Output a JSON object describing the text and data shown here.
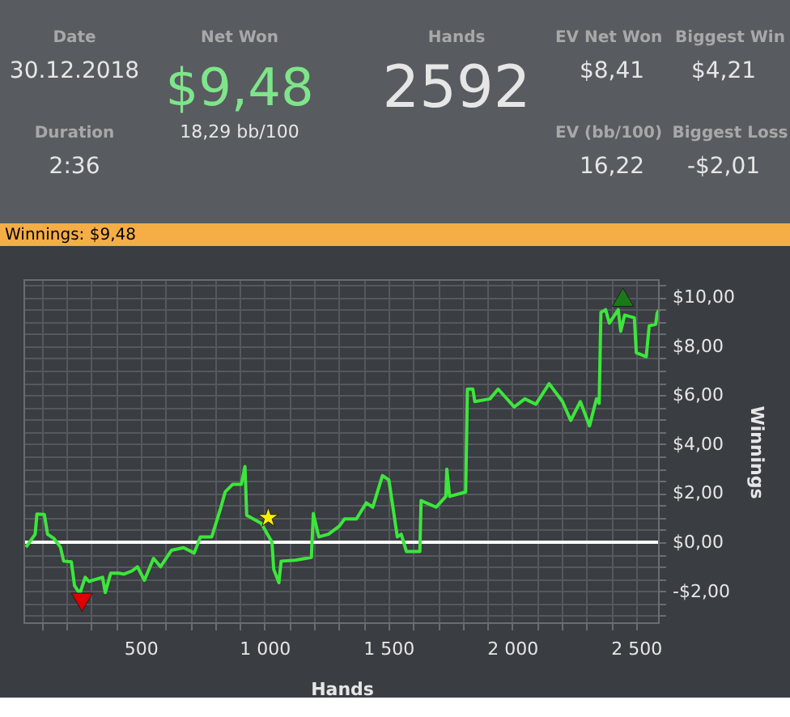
{
  "chart_data": [
    {
      "type": "other",
      "annotations": [
        "Date",
        "30.12.2018",
        "Net Won",
        "$9,48",
        "18,29 bb/100",
        "Hands",
        "2592",
        "EV Net Won",
        "$8,41",
        "Biggest Win",
        "$4,21",
        "Duration",
        "2:36",
        "EV (bb/100)",
        "16,22",
        "Biggest Loss",
        "-$2,01"
      ]
    },
    {
      "type": "line",
      "title": "Winnings: $9,48",
      "xlabel": "Hands",
      "ylabel": "Winnings",
      "xlim": [
        30,
        2592
      ],
      "ylim": [
        -3.3,
        10.7
      ],
      "xticks": [
        {
          "value": 100,
          "label": null
        },
        {
          "value": 200,
          "label": null
        },
        {
          "value": 300,
          "label": null
        },
        {
          "value": 400,
          "label": null
        },
        500,
        {
          "value": 600,
          "label": null
        },
        {
          "value": 700,
          "label": null
        },
        {
          "value": 800,
          "label": null
        },
        {
          "value": 900,
          "label": null
        },
        {
          "value": 1000,
          "label": "1 000"
        },
        {
          "value": 1100,
          "label": null
        },
        {
          "value": 1200,
          "label": null
        },
        {
          "value": 1300,
          "label": null
        },
        {
          "value": 1400,
          "label": null
        },
        {
          "value": 1500,
          "label": "1 500"
        },
        {
          "value": 1600,
          "label": null
        },
        {
          "value": 1700,
          "label": null
        },
        {
          "value": 1800,
          "label": null
        },
        {
          "value": 1900,
          "label": null
        },
        {
          "value": 2000,
          "label": "2 000"
        },
        {
          "value": 2100,
          "label": null
        },
        {
          "value": 2200,
          "label": null
        },
        {
          "value": 2300,
          "label": null
        },
        {
          "value": 2400,
          "label": null
        },
        {
          "value": 2500,
          "label": "2 500"
        }
      ],
      "yticks": [
        {
          "value": -3,
          "label": null
        },
        {
          "value": -2.5,
          "label": null
        },
        {
          "value": -2,
          "label": "-$2,00"
        },
        {
          "value": -1.5,
          "label": null
        },
        {
          "value": -1,
          "label": null
        },
        {
          "value": -0.5,
          "label": null
        },
        {
          "value": 0,
          "label": "$0,00"
        },
        {
          "value": 0.5,
          "label": null
        },
        {
          "value": 1,
          "label": null
        },
        {
          "value": 1.5,
          "label": null
        },
        {
          "value": 2,
          "label": "$2,00"
        },
        {
          "value": 2.5,
          "label": null
        },
        {
          "value": 3,
          "label": null
        },
        {
          "value": 3.5,
          "label": null
        },
        {
          "value": 4,
          "label": "$4,00"
        },
        {
          "value": 4.5,
          "label": null
        },
        {
          "value": 5,
          "label": null
        },
        {
          "value": 5.5,
          "label": null
        },
        {
          "value": 6,
          "label": "$6,00"
        },
        {
          "value": 6.5,
          "label": null
        },
        {
          "value": 7,
          "label": null
        },
        {
          "value": 7.5,
          "label": null
        },
        {
          "value": 8,
          "label": "$8,00"
        },
        {
          "value": 8.5,
          "label": null
        },
        {
          "value": 9,
          "label": null
        },
        {
          "value": 9.5,
          "label": null
        },
        {
          "value": 10,
          "label": "$10,00"
        },
        {
          "value": 10.5,
          "label": null
        }
      ],
      "grid": true,
      "ref_lines": [
        {
          "axis": "y",
          "value": 0,
          "color": "#ffffff"
        }
      ],
      "series": [
        {
          "type": "line",
          "marker": "none",
          "color": "#3ce63c",
          "x": [
            37,
            74,
            81,
            111,
            124,
            150,
            176,
            189,
            220,
            233,
            254,
            276,
            291,
            346,
            357,
            379,
            411,
            433,
            465,
            487,
            515,
            552,
            580,
            624,
            673,
            716,
            741,
            787,
            824,
            841,
            871,
            906,
            921,
            928,
            987,
            1030,
            1037,
            1058,
            1067,
            1124,
            1189,
            1197,
            1219,
            1258,
            1302,
            1323,
            1371,
            1411,
            1437,
            1476,
            1502,
            1536,
            1552,
            1573,
            1627,
            1632,
            1693,
            1732,
            1736,
            1747,
            1812,
            1819,
            1841,
            1849,
            1910,
            1943,
            2008,
            2051,
            2095,
            2149,
            2203,
            2236,
            2275,
            2312,
            2340,
            2351,
            2358,
            2377,
            2392,
            2428,
            2438,
            2454,
            2493,
            2501,
            2541,
            2553,
            2579,
            2585,
            2592
          ],
          "values": [
            -0.2,
            0.33,
            1.15,
            1.13,
            0.33,
            0.15,
            -0.2,
            -0.77,
            -0.8,
            -1.77,
            -2.1,
            -1.43,
            -1.6,
            -1.43,
            -2.05,
            -1.26,
            -1.26,
            -1.3,
            -1.17,
            -1.0,
            -1.55,
            -0.66,
            -1.0,
            -0.33,
            -0.22,
            -0.44,
            0.22,
            0.22,
            1.43,
            2.05,
            2.36,
            2.36,
            3.09,
            1.1,
            0.77,
            0,
            -1.1,
            -1.65,
            -0.77,
            -0.73,
            -0.62,
            1.17,
            0.22,
            0.33,
            0.66,
            0.95,
            0.95,
            1.61,
            1.43,
            2.72,
            2.54,
            0.22,
            0.33,
            -0.38,
            -0.38,
            1.7,
            1.43,
            1.87,
            2.98,
            1.87,
            2.05,
            6.25,
            6.25,
            5.74,
            5.85,
            6.25,
            5.52,
            5.85,
            5.63,
            6.47,
            5.74,
            4.97,
            5.74,
            4.75,
            5.85,
            5.67,
            9.38,
            9.49,
            8.94,
            9.49,
            8.61,
            9.27,
            9.16,
            7.73,
            7.57,
            8.83,
            8.89,
            9.34,
            9.48
          ]
        },
        {
          "type": "scatter",
          "marker": "triangle",
          "color": "#e00000",
          "x": [
            263
          ],
          "values": [
            -2.45
          ]
        },
        {
          "type": "scatter",
          "marker": "star",
          "color": "#ffee00",
          "x": [
            1015
          ],
          "values": [
            1.0
          ]
        },
        {
          "type": "scatter",
          "marker": "triangle",
          "color": "#1a7a1a",
          "x": [
            2447
          ],
          "values": [
            10.0
          ]
        }
      ]
    }
  ]
}
